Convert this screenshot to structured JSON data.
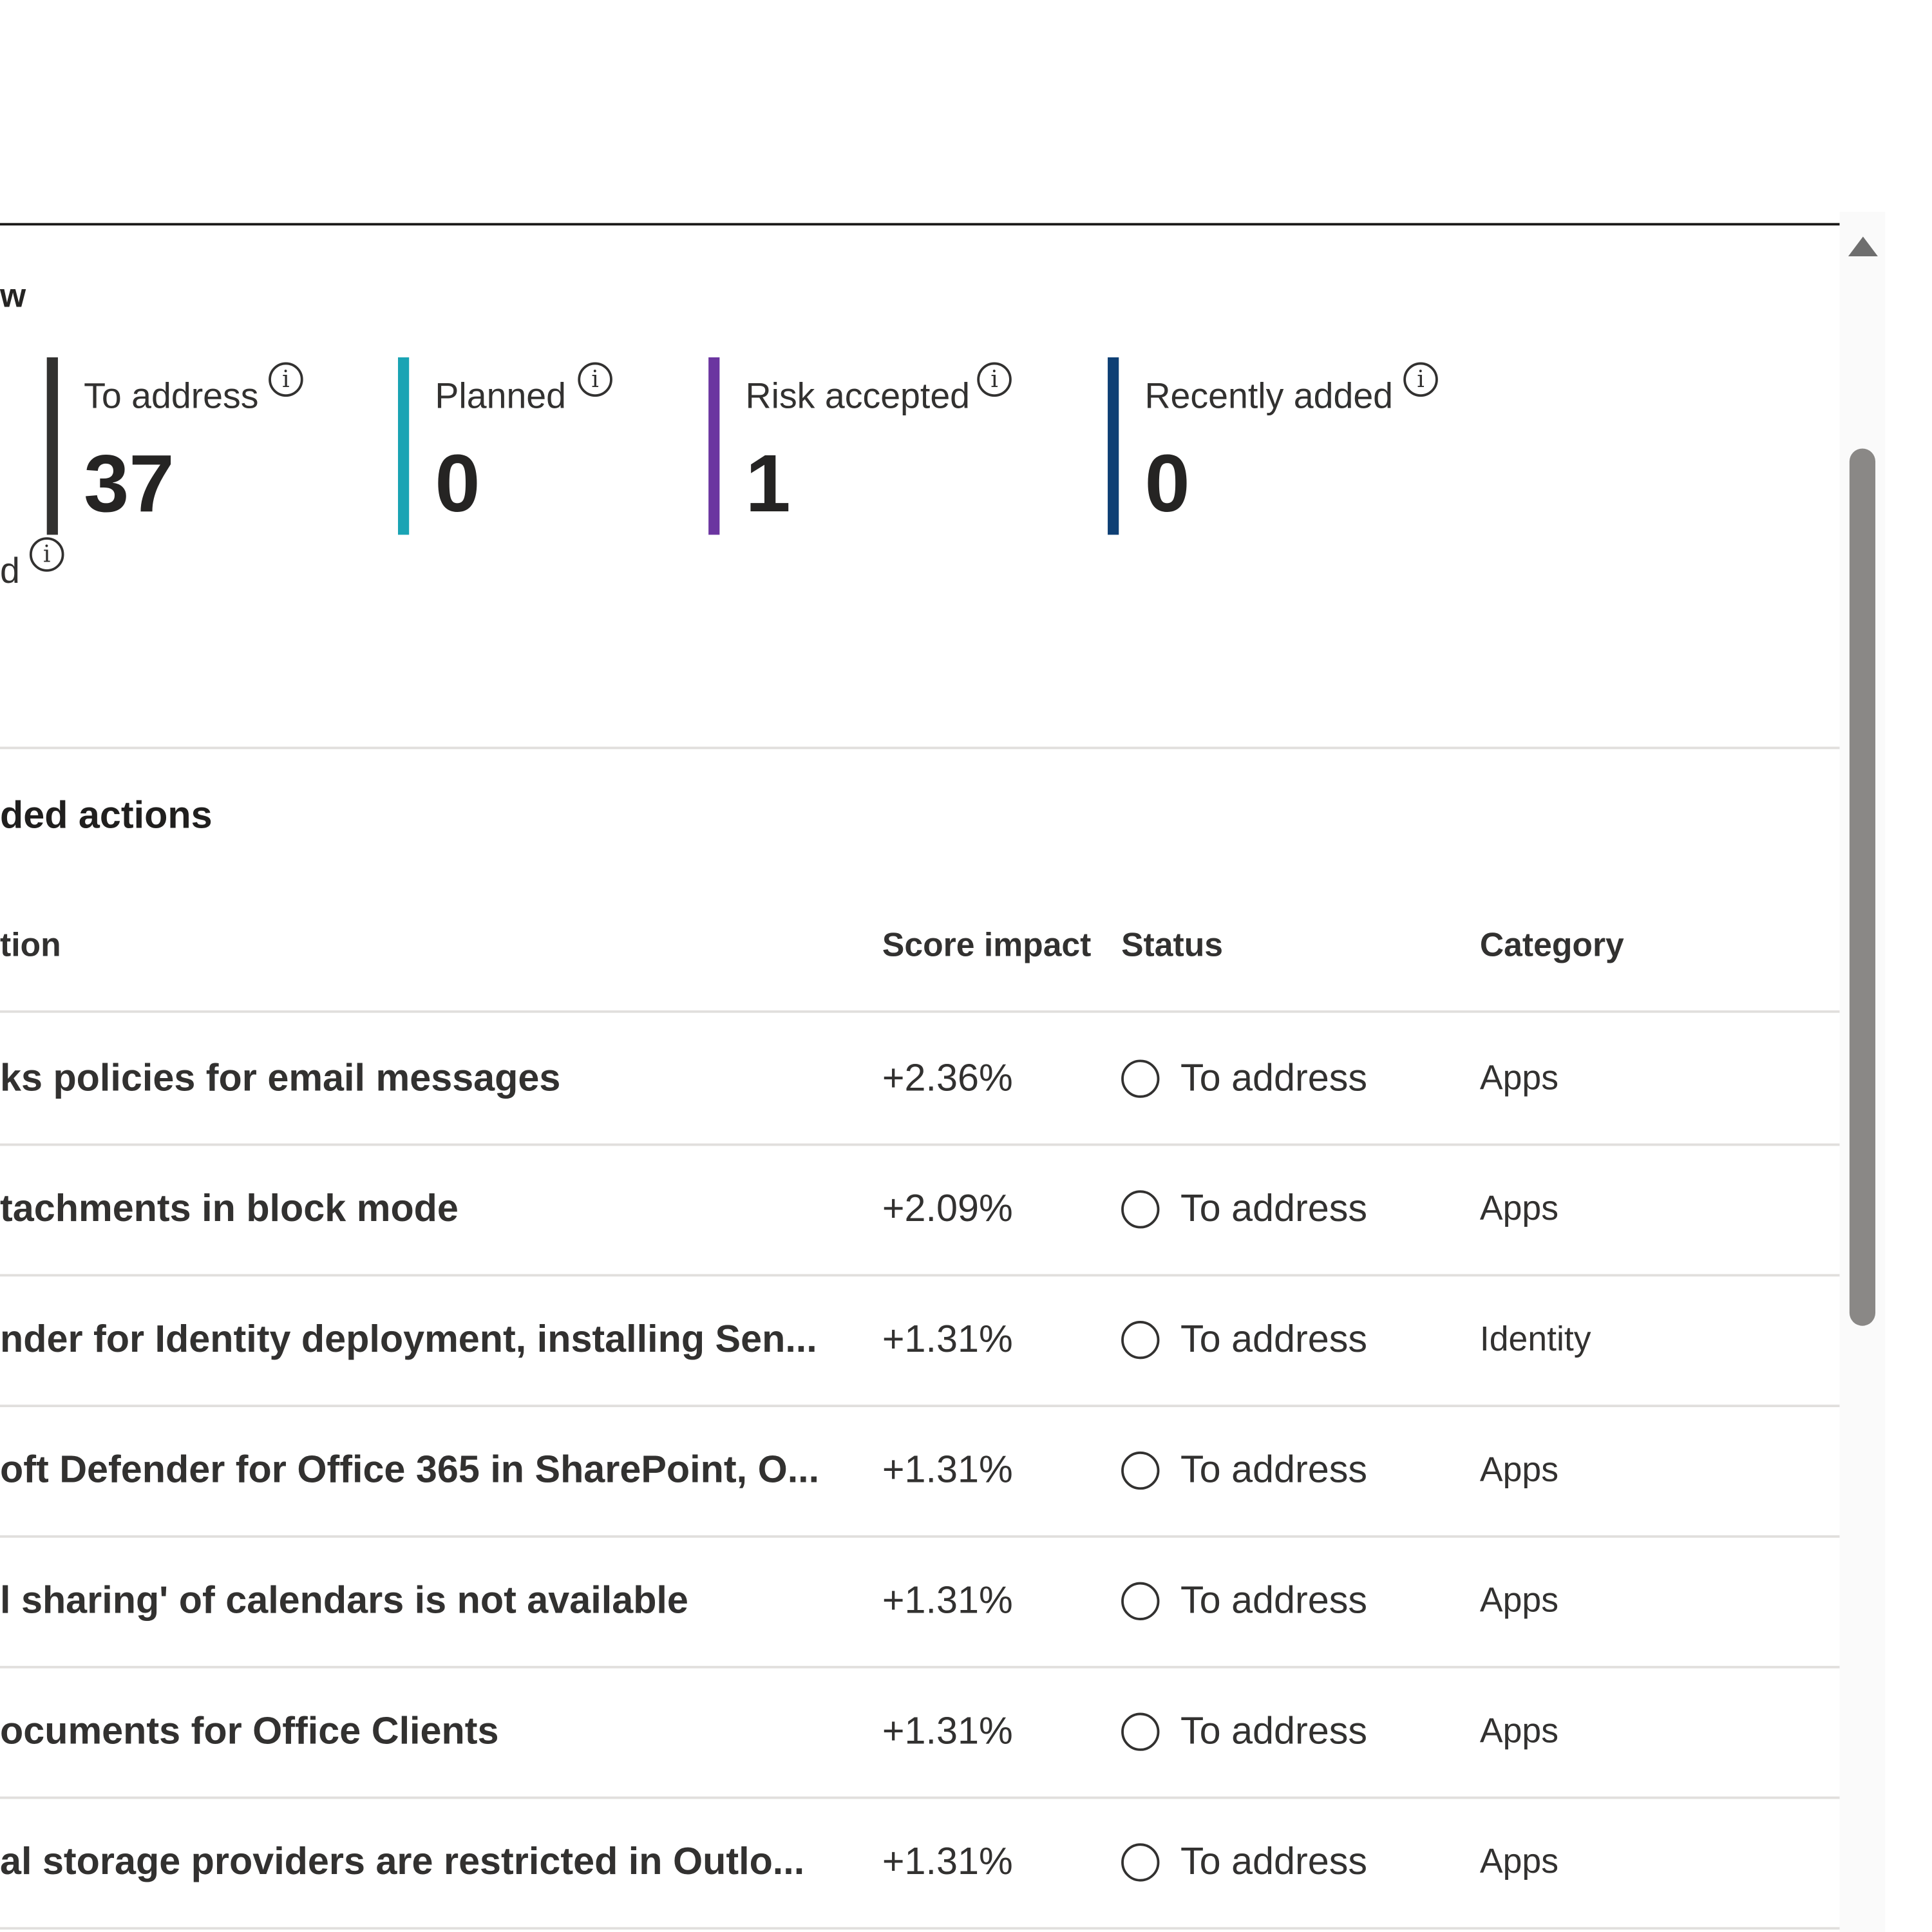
{
  "overview": {
    "title_fragment": "w",
    "stats": [
      {
        "label": "To address",
        "value": "37",
        "color": "#323130"
      },
      {
        "label": "Planned",
        "value": "0",
        "color": "#1aa4b4"
      },
      {
        "label": "Risk accepted",
        "value": "1",
        "color": "#6b35a0"
      },
      {
        "label": "Recently added",
        "value": "0",
        "color": "#0e3f74"
      }
    ],
    "stray_label_fragment": "d"
  },
  "actions": {
    "title_fragment": "ded actions",
    "columns": {
      "action": "tion",
      "score": "Score impact",
      "status": "Status",
      "category": "Category"
    },
    "rows": [
      {
        "action": "ks policies for email messages",
        "score": "+2.36%",
        "status": "To address",
        "category": "Apps"
      },
      {
        "action": "tachments in block mode",
        "score": "+2.09%",
        "status": "To address",
        "category": "Apps"
      },
      {
        "action": "nder for Identity deployment, installing Sen...",
        "score": "+1.31%",
        "status": "To address",
        "category": "Identity"
      },
      {
        "action": "oft Defender for Office 365 in SharePoint, O...",
        "score": "+1.31%",
        "status": "To address",
        "category": "Apps"
      },
      {
        "action": "l sharing' of calendars is not available",
        "score": "+1.31%",
        "status": "To address",
        "category": "Apps"
      },
      {
        "action": "ocuments for Office Clients",
        "score": "+1.31%",
        "status": "To address",
        "category": "Apps"
      },
      {
        "action": "al storage providers are restricted in Outlo...",
        "score": "+1.31%",
        "status": "To address",
        "category": "Apps"
      }
    ]
  },
  "icons": {
    "info": "info-icon",
    "status": "status-circle-icon",
    "scroll_up": "scroll-up-arrow-icon"
  }
}
